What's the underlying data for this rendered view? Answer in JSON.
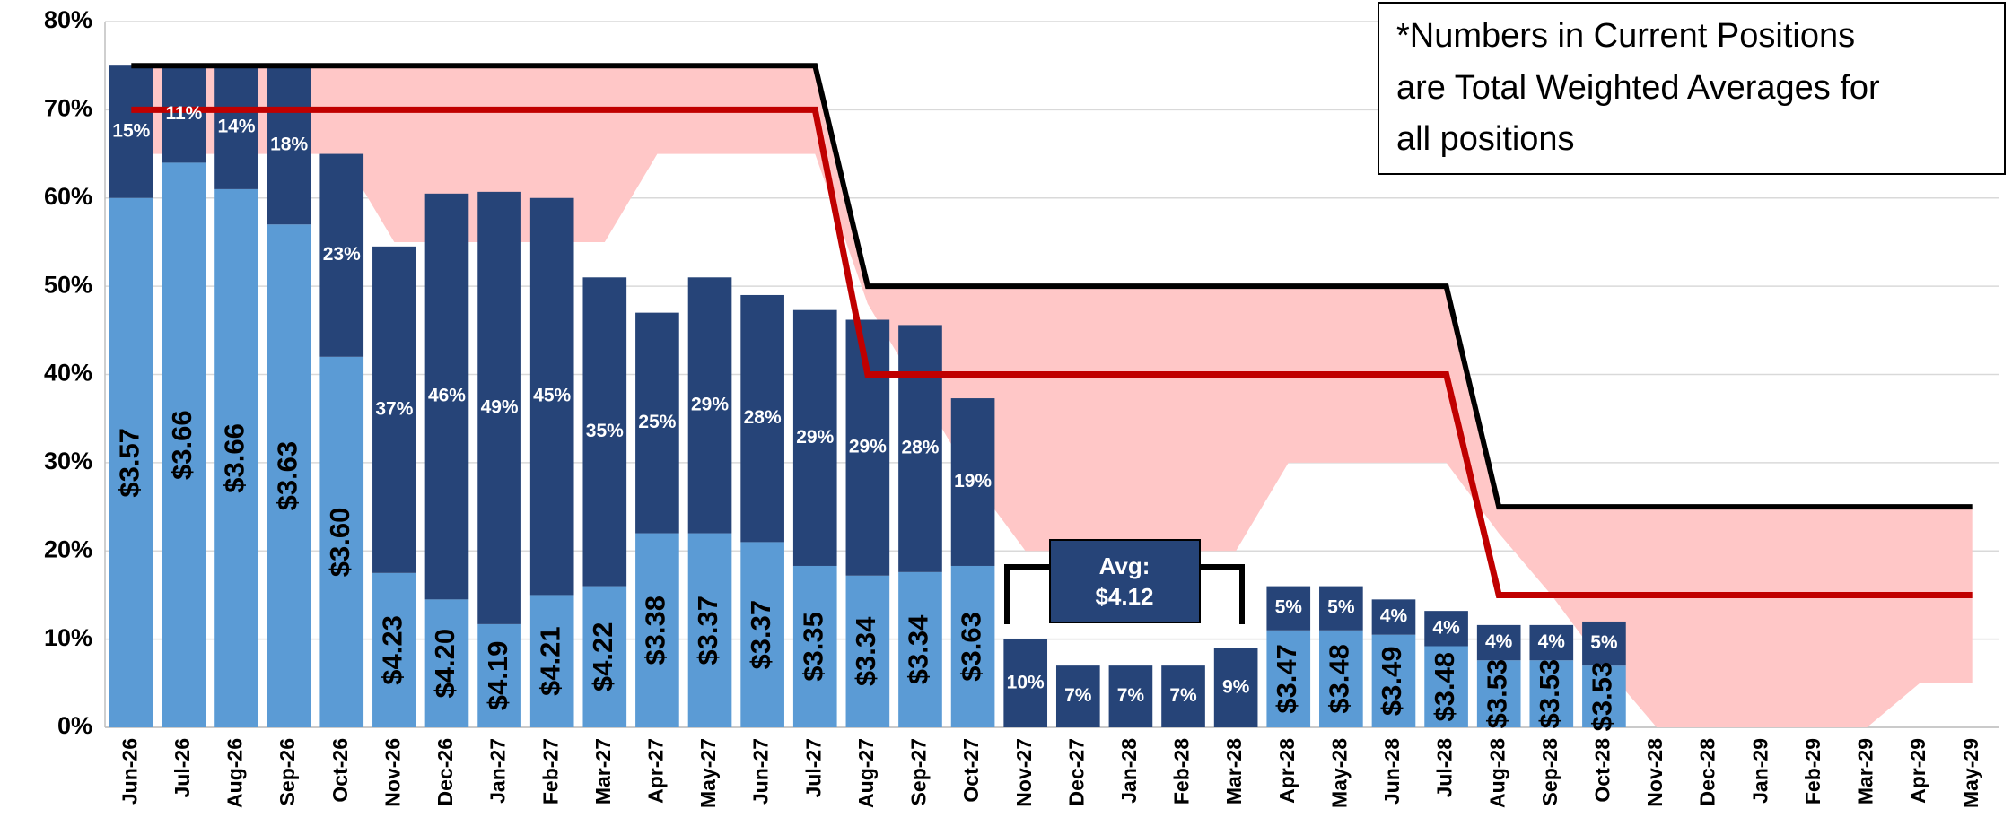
{
  "chart_data": {
    "type": "bar",
    "stacked": true,
    "categories": [
      "Jun-26",
      "Jul-26",
      "Aug-26",
      "Sep-26",
      "Oct-26",
      "Nov-26",
      "Dec-26",
      "Jan-27",
      "Feb-27",
      "Mar-27",
      "Apr-27",
      "May-27",
      "Jun-27",
      "Jul-27",
      "Aug-27",
      "Sep-27",
      "Oct-27",
      "Nov-27",
      "Dec-27",
      "Jan-28",
      "Feb-28",
      "Mar-28",
      "Apr-28",
      "May-28",
      "Jun-28",
      "Jul-28",
      "Aug-28",
      "Sep-28",
      "Oct-28",
      "Nov-28",
      "Dec-28",
      "Jan-29",
      "Feb-29",
      "Mar-29",
      "Apr-29",
      "May-29"
    ],
    "ylim": [
      0,
      80
    ],
    "yticks": [
      {
        "value": 0,
        "label": "0%"
      },
      {
        "value": 10,
        "label": "10%"
      },
      {
        "value": 20,
        "label": "20%"
      },
      {
        "value": 30,
        "label": "30%"
      },
      {
        "value": 40,
        "label": "40%"
      },
      {
        "value": 50,
        "label": "50%"
      },
      {
        "value": 60,
        "label": "60%"
      },
      {
        "value": 70,
        "label": "70%"
      },
      {
        "value": 80,
        "label": "80%"
      }
    ],
    "grid": true,
    "series": [
      {
        "color": "#5b9bd5",
        "values": [
          60,
          64,
          61,
          57,
          42,
          17.5,
          14.5,
          11.7,
          15,
          16,
          22,
          22,
          21,
          18.3,
          17.2,
          17.6,
          18.3,
          null,
          null,
          null,
          null,
          null,
          11,
          11,
          10.5,
          9.2,
          7.6,
          7.6,
          7,
          null,
          null,
          null,
          null,
          null,
          null,
          null
        ],
        "price_labels": [
          "$3.57",
          "$3.66",
          "$3.66",
          "$3.63",
          "$3.60",
          "$4.23",
          "$4.20",
          "$4.19",
          "$4.21",
          "$4.22",
          "$3.38",
          "$3.37",
          "$3.37",
          "$3.35",
          "$3.34",
          "$3.34",
          "$3.63",
          null,
          null,
          null,
          null,
          null,
          "$3.47",
          "$3.48",
          "$3.49",
          "$3.48",
          "$3.53",
          "$3.53",
          "$3.53",
          null,
          null,
          null,
          null,
          null,
          null,
          null
        ]
      },
      {
        "color": "#264478",
        "values": [
          15,
          11,
          14,
          18,
          23,
          37,
          46,
          49,
          45,
          35,
          25,
          29,
          28,
          29,
          29,
          28,
          19,
          10,
          7,
          7,
          7,
          9,
          5,
          5,
          4,
          4,
          4,
          4,
          5,
          null,
          null,
          null,
          null,
          null,
          null,
          null
        ],
        "value_labels": [
          "15%",
          "11%",
          "14%",
          "18%",
          "23%",
          "37%",
          "46%",
          "49%",
          "45%",
          "35%",
          "25%",
          "29%",
          "28%",
          "29%",
          "29%",
          "28%",
          "19%",
          "10%",
          "7%",
          "7%",
          "7%",
          "9%",
          "5%",
          "5%",
          "4%",
          "4%",
          "4%",
          "4%",
          "5%",
          null,
          null,
          null,
          null,
          null,
          null,
          null
        ]
      }
    ],
    "lines": [
      {
        "color": "#000000",
        "values": [
          75,
          75,
          75,
          75,
          75,
          75,
          75,
          75,
          75,
          75,
          75,
          75,
          75,
          75,
          50,
          50,
          50,
          50,
          50,
          50,
          50,
          50,
          50,
          50,
          50,
          50,
          25,
          25,
          25,
          25,
          25,
          25,
          25,
          25,
          25,
          25
        ]
      },
      {
        "color": "#c00000",
        "values": [
          70,
          70,
          70,
          70,
          70,
          70,
          70,
          70,
          70,
          70,
          70,
          70,
          70,
          70,
          40,
          40,
          40,
          40,
          40,
          40,
          40,
          40,
          40,
          40,
          40,
          40,
          15,
          15,
          15,
          15,
          15,
          15,
          15,
          15,
          15,
          15
        ]
      }
    ],
    "band": {
      "color": "#ffc7c7",
      "lower": [
        65,
        65,
        65,
        65,
        65,
        55,
        55,
        55,
        55,
        55,
        65,
        65,
        65,
        65,
        48,
        38,
        28,
        20,
        20,
        20,
        20,
        20,
        30,
        30,
        30,
        30,
        22,
        15,
        7,
        0,
        0,
        0,
        0,
        0,
        5,
        5
      ]
    },
    "note": [
      "*Numbers in Current Positions",
      "are Total Weighted Averages for",
      "all positions"
    ],
    "avg": [
      "Avg:",
      "$4.12"
    ]
  }
}
